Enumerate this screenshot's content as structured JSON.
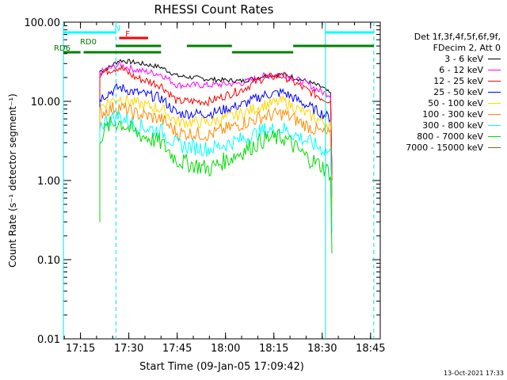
{
  "chart_data": {
    "type": "line",
    "title": "RHESSI Count Rates",
    "xlabel": "Start Time (09-Jan-05 17:09:42)",
    "ylabel": "Count Rate (s⁻¹ detector segment⁻¹)",
    "yscale": "log",
    "ylim": [
      0.01,
      100
    ],
    "xlim_minutes": [
      17.1667,
      18.8
    ],
    "x_unit": "hours of day (UT)",
    "xticks": [
      "17:15",
      "17:30",
      "17:45",
      "18:00",
      "18:15",
      "18:30",
      "18:45"
    ],
    "yticks": [
      "0.01",
      "0.10",
      "1.00",
      "10.00",
      "100.00"
    ],
    "grid": false,
    "legend_position": "right",
    "legend_header": [
      "Det 1f,3f,4f,5f,6f,9f,",
      "FDecim 2, Att 0"
    ],
    "series": [
      {
        "name": "3 - 6 keV",
        "color": "#000000",
        "x": [
          "17:21",
          "17:24",
          "17:27",
          "17:32",
          "17:40",
          "17:45",
          "17:55",
          "18:05",
          "18:12",
          "18:18",
          "18:25",
          "18:30",
          "18:33"
        ],
        "values": [
          24,
          27,
          33,
          31,
          27,
          21,
          19,
          18,
          21,
          22,
          18,
          15,
          12
        ]
      },
      {
        "name": "6 - 12 keV",
        "color": "#ff00ff",
        "x": [
          "17:21",
          "17:24",
          "17:27",
          "17:32",
          "17:40",
          "17:45",
          "17:55",
          "18:05",
          "18:12",
          "18:18",
          "18:25",
          "18:30",
          "18:33"
        ],
        "values": [
          23,
          26,
          29,
          25,
          22,
          16,
          16,
          17,
          21,
          22,
          17,
          13,
          12
        ]
      },
      {
        "name": "12 - 25 keV",
        "color": "#ff0000",
        "x": [
          "17:21",
          "17:24",
          "17:27",
          "17:32",
          "17:40",
          "17:45",
          "17:55",
          "18:05",
          "18:12",
          "18:18",
          "18:25",
          "18:30",
          "18:33"
        ],
        "values": [
          22,
          25,
          27,
          20,
          16,
          10,
          10,
          14,
          20,
          21,
          14,
          11,
          10
        ]
      },
      {
        "name": "25 - 50 keV",
        "color": "#0000ff",
        "x": [
          "17:21",
          "17:24",
          "17:27",
          "17:32",
          "17:40",
          "17:45",
          "17:55",
          "18:05",
          "18:12",
          "18:18",
          "18:25",
          "18:30",
          "18:33"
        ],
        "values": [
          11,
          13,
          15,
          13,
          11,
          7,
          7,
          9,
          12,
          13,
          9,
          7,
          6
        ]
      },
      {
        "name": "50 - 100 keV",
        "color": "#ffd700",
        "x": [
          "17:21",
          "17:24",
          "17:27",
          "17:32",
          "17:40",
          "17:45",
          "17:55",
          "18:05",
          "18:12",
          "18:18",
          "18:25",
          "18:30",
          "18:33"
        ],
        "values": [
          8.5,
          10,
          11,
          9.5,
          8,
          5.5,
          5.4,
          7,
          9,
          10,
          7,
          5.5,
          5
        ]
      },
      {
        "name": "100 - 300 keV",
        "color": "#ff8c00",
        "x": [
          "17:21",
          "17:24",
          "17:27",
          "17:32",
          "17:40",
          "17:45",
          "17:55",
          "18:05",
          "18:12",
          "18:18",
          "18:25",
          "18:30",
          "18:33"
        ],
        "values": [
          7,
          8,
          8.5,
          7,
          6,
          4,
          3.8,
          5.2,
          6.5,
          7,
          5,
          4,
          3.6
        ]
      },
      {
        "name": "300 - 800 keV",
        "color": "#00ffff",
        "x": [
          "17:21",
          "17:24",
          "17:27",
          "17:32",
          "17:40",
          "17:45",
          "17:55",
          "18:05",
          "18:12",
          "18:18",
          "18:25",
          "18:30",
          "18:33"
        ],
        "values": [
          5,
          6,
          6.5,
          5,
          4.2,
          2.8,
          2.5,
          3.3,
          4.3,
          4.5,
          3.2,
          2.5,
          2.2
        ]
      },
      {
        "name": "800 - 7000 keV",
        "color": "#00dd00",
        "x": [
          "17:21",
          "17:24",
          "17:27",
          "17:32",
          "17:40",
          "17:45",
          "17:55",
          "18:05",
          "18:12",
          "18:18",
          "18:25",
          "18:30",
          "18:33"
        ],
        "values": [
          3.5,
          5,
          5.5,
          4,
          3,
          1.8,
          1.4,
          2.3,
          3.3,
          3.5,
          2,
          1.5,
          1.2
        ]
      },
      {
        "name": "7000 - 15000 keV",
        "color": "#8b6508",
        "x": [],
        "values": []
      }
    ],
    "attenuator_states": [
      {
        "label": "N",
        "color": "#00ffff",
        "segments": [
          [
            "17:09:42",
            "17:26"
          ],
          [
            "18:31",
            "18:46"
          ]
        ]
      },
      {
        "label": "F",
        "color": "#ff0000",
        "segments": [
          [
            "17:27",
            "17:36"
          ]
        ]
      },
      {
        "label": "RD0",
        "color": "#008000",
        "segments": [
          [
            "17:26",
            "17:40"
          ],
          [
            "17:48",
            "18:02"
          ],
          [
            "18:21",
            "18:46"
          ]
        ]
      },
      {
        "label": "RD6",
        "color": "#008000",
        "segments": [
          [
            "17:09:42",
            "17:15"
          ],
          [
            "17:16",
            "17:40"
          ],
          [
            "18:02",
            "18:21"
          ]
        ]
      }
    ],
    "vlines_solid": [
      "17:09:42",
      "18:31"
    ],
    "vlines_dashed": [
      "17:26",
      "18:46"
    ]
  },
  "footer_timestamp": "13-Oct-2021 17:33"
}
